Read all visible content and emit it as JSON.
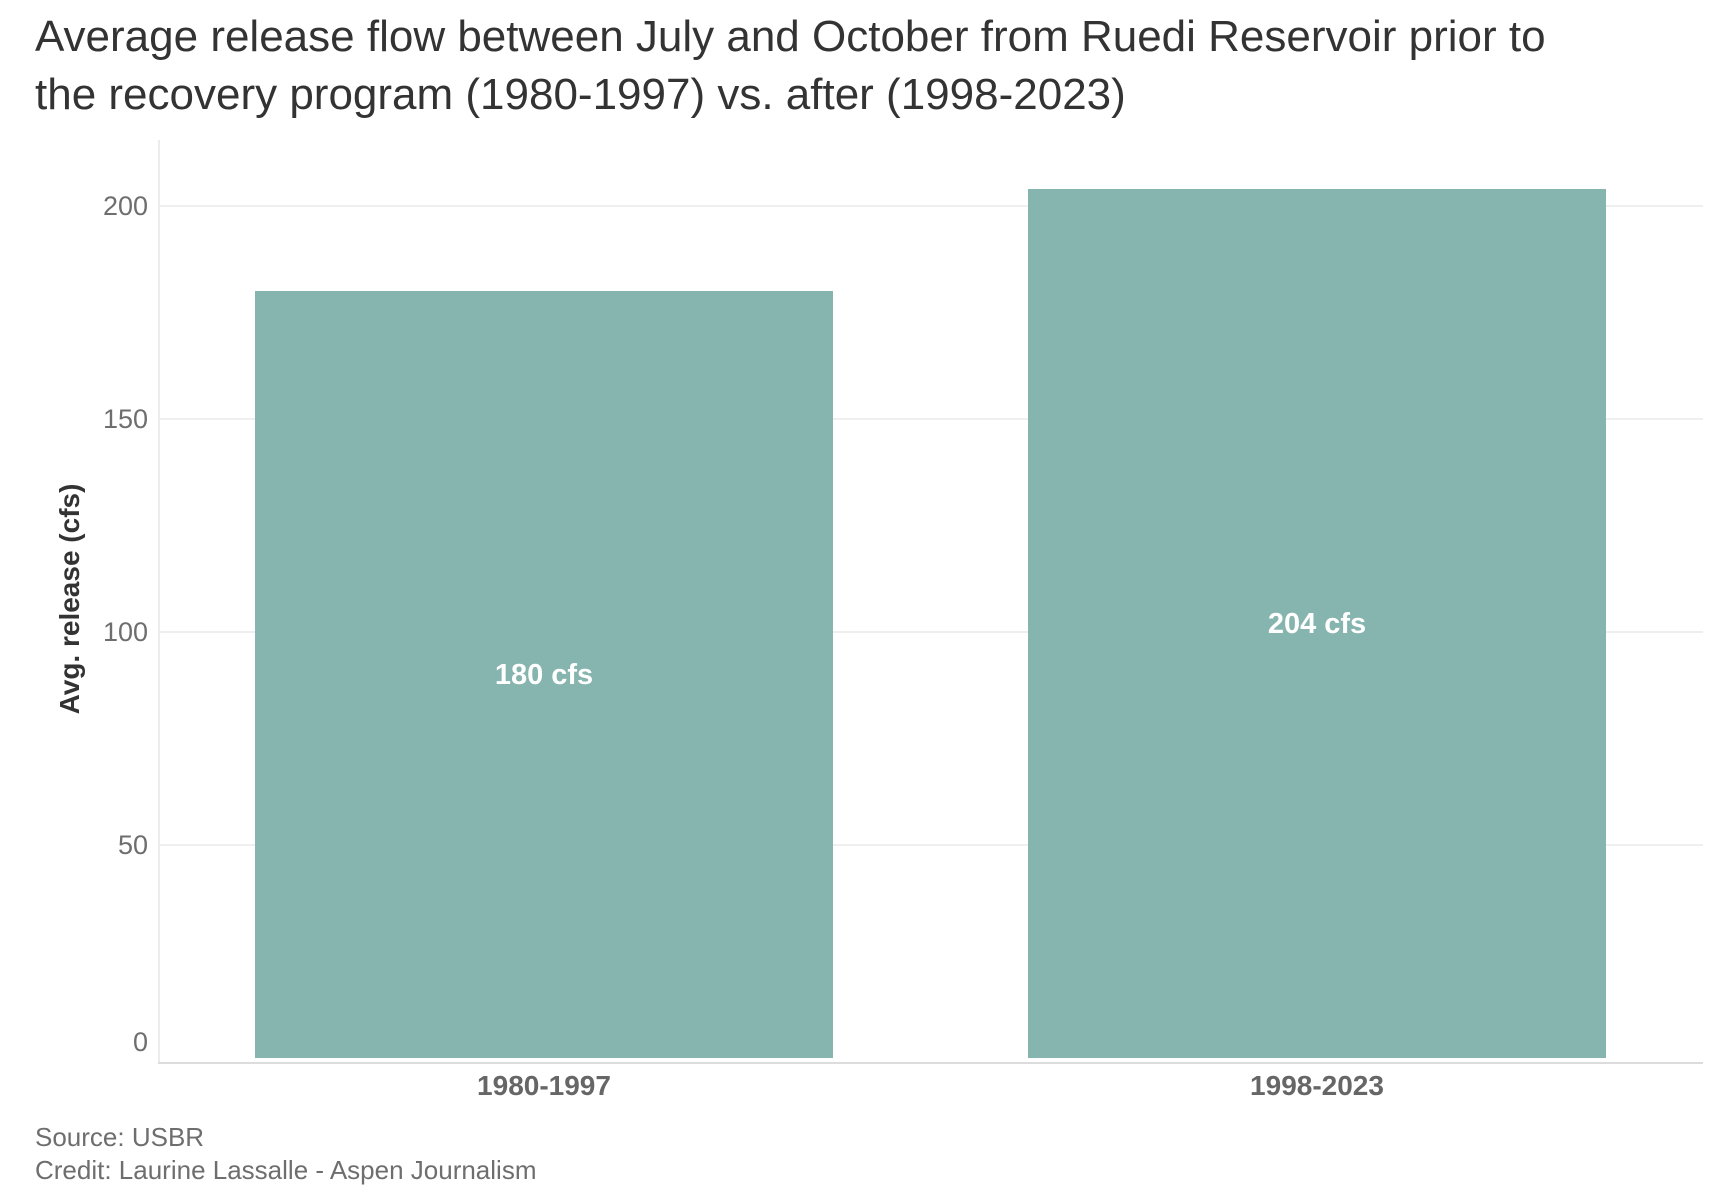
{
  "chart_data": {
    "type": "bar",
    "title": "Average release flow between July and October from Ruedi Reservoir prior to the recovery program (1980-1997) vs. after (1998-2023)",
    "categories": [
      "1980-1997",
      "1998-2023"
    ],
    "values": [
      180,
      204
    ],
    "bar_labels": [
      "180 cfs",
      "204 cfs"
    ],
    "xlabel": "",
    "ylabel": "Avg. release (cfs)",
    "yticks": [
      0,
      50,
      100,
      150,
      200
    ],
    "ylim": [
      0,
      215.5
    ],
    "grid": true,
    "legend": false,
    "bar_color": "#86b4ae",
    "bar_label_color": "#ffffff"
  },
  "footer": {
    "source": "Source: USBR",
    "credit": "Credit: Laurine Lassalle - Aspen Journalism"
  }
}
